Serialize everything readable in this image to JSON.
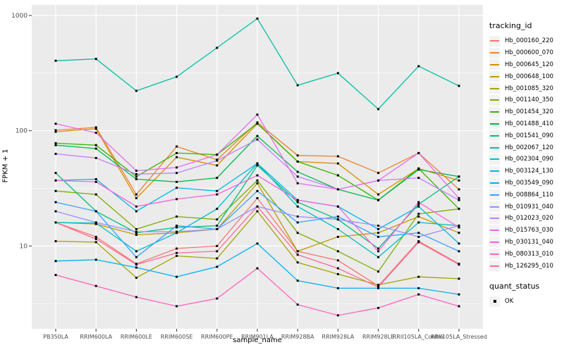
{
  "chart_data": {
    "type": "line",
    "title": "",
    "xlabel": "sample_name",
    "ylabel": "FPKM + 1",
    "y_scale": "log10",
    "ylim": [
      1.9,
      1230
    ],
    "y_ticks": [
      10,
      100,
      1000
    ],
    "y_minor_ticks": [
      3.162,
      31.62,
      316.2
    ],
    "grid": "on",
    "panel_bg": "#EBEBEB",
    "grid_color": "#FFFFFF",
    "point_color": "#000000",
    "legend_position": "right",
    "categories": [
      "PB350LA",
      "RRIM600LA",
      "RRIM600LE",
      "RRIM600SE",
      "RRIM600PE",
      "RRIM901LA",
      "RRIM928BA",
      "RRIM928LA",
      "RRIM928LE",
      "RRII105LA_Control",
      "RRII105LA_Stressed"
    ],
    "series": [
      {
        "name": "Hb_000160_220",
        "color": "#F8766D",
        "values": [
          16,
          12,
          7,
          9.5,
          10,
          26,
          9,
          7.5,
          4.5,
          11,
          7
        ]
      },
      {
        "name": "Hb_000600_070",
        "color": "#EA8331",
        "values": [
          101,
          107,
          28,
          73,
          56,
          118,
          61,
          60,
          43,
          64,
          31
        ]
      },
      {
        "name": "Hb_000645_120",
        "color": "#D89000",
        "values": [
          98,
          104,
          26,
          59,
          50,
          115,
          54,
          52,
          28,
          47,
          37
        ]
      },
      {
        "name": "Hb_000648_100",
        "color": "#C09B00",
        "values": [
          16,
          15.5,
          12.5,
          13,
          14,
          35,
          9,
          12,
          13,
          18,
          13
        ]
      },
      {
        "name": "Hb_001085_320",
        "color": "#A3A500",
        "values": [
          11,
          10.8,
          5.3,
          8.2,
          7.8,
          20,
          7.2,
          5.7,
          4.6,
          5.4,
          5.2
        ]
      },
      {
        "name": "Hb_001140_350",
        "color": "#7CAE00",
        "values": [
          30,
          28,
          14,
          18,
          17,
          37,
          13,
          9,
          6,
          19,
          21
        ]
      },
      {
        "name": "Hb_001454_320",
        "color": "#39B600",
        "values": [
          78,
          75,
          40,
          64,
          62,
          116,
          54,
          41,
          25,
          47,
          21
        ]
      },
      {
        "name": "Hb_001488_410",
        "color": "#00BB4E",
        "values": [
          75,
          70,
          38,
          36,
          39,
          90,
          44,
          31,
          25,
          46,
          40
        ]
      },
      {
        "name": "Hb_001541_090",
        "color": "#00BF7D",
        "values": [
          43,
          20,
          13,
          14.5,
          15,
          50,
          24,
          17,
          9.5,
          23,
          40
        ]
      },
      {
        "name": "Hb_002067_120",
        "color": "#00C1A3",
        "values": [
          405,
          420,
          222,
          294,
          524,
          940,
          248,
          316,
          154,
          363,
          245
        ]
      },
      {
        "name": "Hb_002304_090",
        "color": "#00BFC4",
        "values": [
          16,
          15.8,
          9,
          13,
          21,
          52,
          22,
          14,
          8,
          16,
          15
        ]
      },
      {
        "name": "Hb_003124_130",
        "color": "#00BAE0",
        "values": [
          37,
          38,
          20,
          32,
          30,
          52,
          25,
          22,
          14,
          22,
          10.5
        ]
      },
      {
        "name": "Hb_003549_090",
        "color": "#00B0F6",
        "values": [
          7.4,
          7.6,
          6.5,
          5.4,
          6.6,
          10.5,
          5,
          4.3,
          4.3,
          4.3,
          3.8
        ]
      },
      {
        "name": "Hb_008864_110",
        "color": "#35A2FF",
        "values": [
          24,
          20,
          8,
          15,
          14,
          30,
          16,
          18,
          12,
          13,
          9
        ]
      },
      {
        "name": "Hb_010931_040",
        "color": "#9590FF",
        "values": [
          20,
          16,
          13.3,
          13.3,
          14,
          22,
          18,
          17,
          15,
          12,
          15
        ]
      },
      {
        "name": "Hb_012023_020",
        "color": "#C77CFF",
        "values": [
          63,
          58,
          42,
          43,
          55,
          84,
          40,
          31,
          37,
          39,
          25
        ]
      },
      {
        "name": "Hb_015763_030",
        "color": "#E76BF3",
        "values": [
          115,
          96,
          45,
          48,
          62,
          138,
          35,
          31,
          37,
          64,
          26
        ]
      },
      {
        "name": "Hb_030131_040",
        "color": "#FA62DB",
        "values": [
          37,
          36,
          22,
          25.5,
          28,
          41,
          25,
          22,
          9,
          24,
          14.5
        ]
      },
      {
        "name": "Hb_080313_010",
        "color": "#FF62BC",
        "values": [
          5.6,
          4.5,
          3.6,
          3,
          3.5,
          6.4,
          3.1,
          2.5,
          2.9,
          3.8,
          3
        ]
      },
      {
        "name": "Hb_126295_010",
        "color": "#FF6A98",
        "values": [
          16,
          11.5,
          6.9,
          8.7,
          9,
          22,
          8.4,
          6.4,
          4.4,
          10.8,
          6.9
        ]
      }
    ]
  },
  "axis": {
    "x_title": "sample_name",
    "y_title": "FPKM + 1",
    "y_tick_labels": [
      "1000",
      "100",
      "10"
    ]
  },
  "legend": {
    "tracking_title": "tracking_id",
    "quant_title": "quant_status",
    "quant_items": [
      "OK"
    ]
  }
}
